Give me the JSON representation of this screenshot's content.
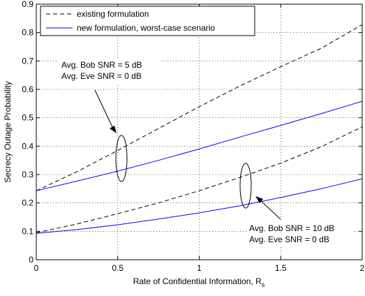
{
  "chart_data": {
    "type": "line",
    "xlabel": "Rate of Confidential Information, R",
    "xlabel_subscript": "s",
    "ylabel": "Secrecy Outage Probability",
    "xlim": [
      0,
      2
    ],
    "ylim": [
      0,
      0.9
    ],
    "xticks": [
      0,
      0.5,
      1,
      1.5,
      2
    ],
    "xtick_labels": [
      "0",
      "0.5",
      "1",
      "1.5",
      "2"
    ],
    "yticks": [
      0,
      0.1,
      0.2,
      0.3,
      0.4,
      0.5,
      0.6,
      0.7,
      0.8,
      0.9
    ],
    "ytick_labels": [
      "0",
      "0.1",
      "0.2",
      "0.3",
      "0.4",
      "0.5",
      "0.6",
      "0.7",
      "0.8",
      "0.9"
    ],
    "grid": true,
    "legend_position": "top-left",
    "x": [
      0,
      0.25,
      0.5,
      0.75,
      1,
      1.25,
      1.5,
      1.75,
      2
    ],
    "series": [
      {
        "name": "existing formulation",
        "style": "dashed",
        "color": "#000000",
        "values": [
          0.243,
          0.31,
          0.385,
          0.462,
          0.539,
          0.612,
          0.68,
          0.745,
          0.828
        ]
      },
      {
        "name": "new formulation, worst-case scenario",
        "style": "solid",
        "color": "#0000ff",
        "values": [
          0.243,
          0.277,
          0.312,
          0.35,
          0.39,
          0.432,
          0.473,
          0.515,
          0.558
        ]
      },
      {
        "name": "existing formulation",
        "style": "dashed",
        "color": "#000000",
        "values": [
          0.095,
          0.126,
          0.162,
          0.2,
          0.243,
          0.29,
          0.34,
          0.398,
          0.468
        ]
      },
      {
        "name": "new formulation, worst-case scenario",
        "style": "solid",
        "color": "#0000ff",
        "values": [
          0.093,
          0.106,
          0.123,
          0.143,
          0.165,
          0.19,
          0.219,
          0.25,
          0.285
        ]
      }
    ],
    "annotations": [
      {
        "lines": [
          "Avg. Bob SNR = 5 dB",
          "Avg. Eve SNR = 0 dB"
        ]
      },
      {
        "lines": [
          "Avg. Bob SNR = 10 dB",
          "Avg. Eve SNR = 0 dB"
        ]
      }
    ]
  }
}
